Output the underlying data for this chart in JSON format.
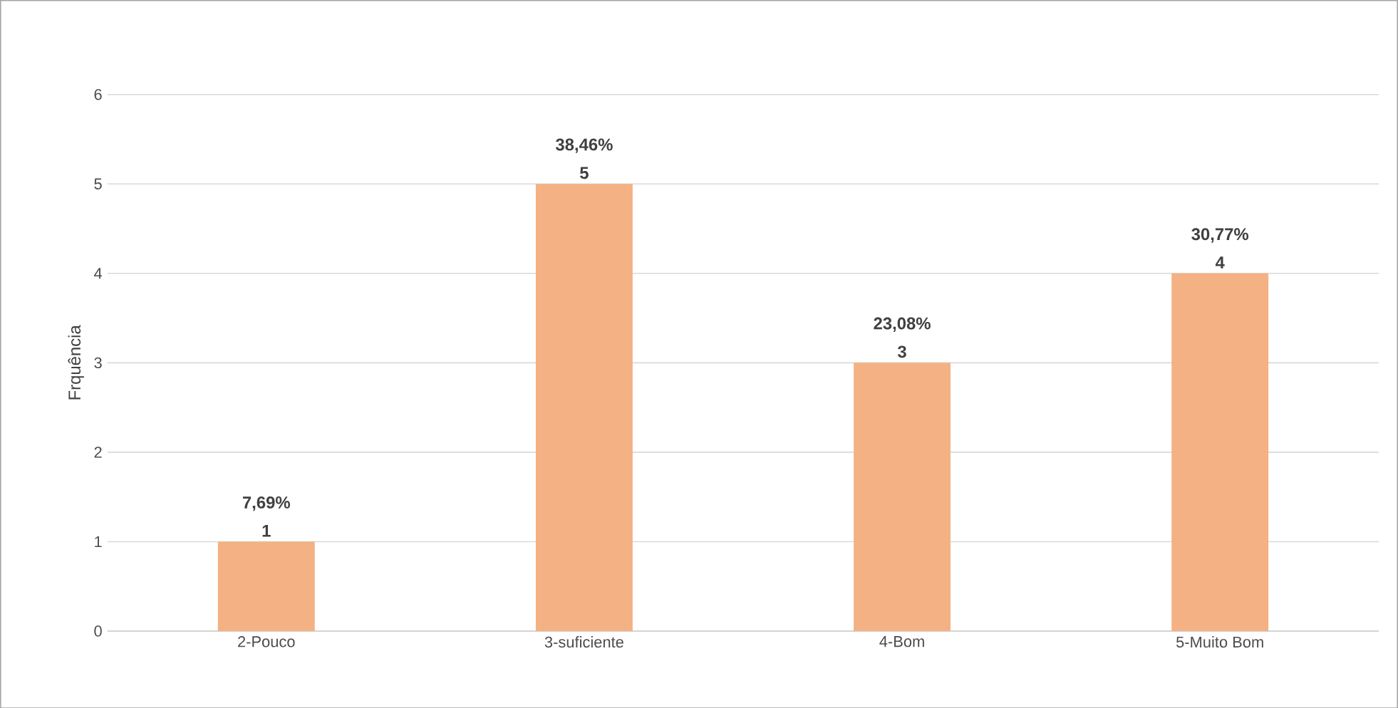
{
  "chart_data": {
    "type": "bar",
    "ylabel": "Frquência",
    "categories": [
      "2-Pouco",
      "3-suficiente",
      "4-Bom",
      "5-Muito Bom"
    ],
    "values": [
      1,
      5,
      3,
      4
    ],
    "color": "#f4b183",
    "ylim": [
      0,
      6
    ],
    "yticks": [
      0,
      1,
      2,
      3,
      4,
      5,
      6
    ],
    "grid": "y",
    "value_labels": [
      "7,69% 1",
      "38,46% 5",
      "23,08% 3",
      "30,77% 4"
    ]
  }
}
